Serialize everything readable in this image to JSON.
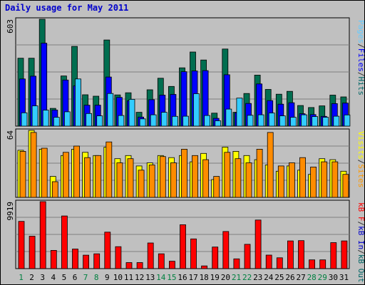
{
  "chart_data": {
    "title": "Daily usage for May 2011",
    "type": "bar",
    "categories": [
      "1",
      "2",
      "3",
      "4",
      "5",
      "6",
      "7",
      "8",
      "9",
      "10",
      "11",
      "12",
      "13",
      "14",
      "15",
      "16",
      "17",
      "18",
      "19",
      "20",
      "21",
      "22",
      "23",
      "24",
      "25",
      "26",
      "27",
      "28",
      "29",
      "30",
      "31"
    ],
    "weekend_days": [
      "1",
      "7",
      "8",
      "14",
      "15",
      "21",
      "22",
      "28",
      "29"
    ],
    "panels": [
      {
        "name": "hits-files-pages",
        "max_label": "603",
        "ymax": 603,
        "legend": [
          "Pages",
          "/",
          "Files",
          "/",
          "Hits"
        ],
        "legend_colors": [
          "#66ccff",
          "#333333",
          "#0000ff",
          "#333333",
          "#006666"
        ],
        "series": [
          {
            "name": "Hits",
            "color": "#006e50",
            "values": [
              383,
              383,
              603,
              100,
              283,
              450,
              177,
              169,
              486,
              176,
              188,
              78,
              205,
              270,
              224,
              329,
              418,
              373,
              73,
              435,
              78,
              184,
              288,
              207,
              180,
              196,
              116,
              105,
              114,
              175,
              165
            ]
          },
          {
            "name": "Files",
            "color": "#0000ff",
            "values": [
              266,
              282,
              468,
              91,
              260,
              227,
              118,
              118,
              277,
              162,
              143,
              51,
              149,
              175,
              179,
              307,
              311,
              313,
              44,
              290,
              75,
              128,
              238,
              144,
              124,
              132,
              70,
              65,
              55,
              127,
              130
            ]
          },
          {
            "name": "Pages",
            "color": "#33ccff",
            "values": [
              75,
              114,
              90,
              50,
              81,
              266,
              71,
              58,
              184,
              60,
              151,
              41,
              64,
              78,
              55,
              56,
              183,
              60,
              30,
              96,
              158,
              61,
              64,
              74,
              58,
              50,
              64,
              54,
              50,
              56,
              63
            ]
          }
        ]
      },
      {
        "name": "visits-sites",
        "max_label": "64",
        "ymax": 64,
        "legend": [
          "Visits",
          "/",
          "Sites"
        ],
        "legend_colors": [
          "#ffff00",
          "#333333",
          "#ff9900"
        ],
        "series": [
          {
            "name": "Visits",
            "color": "#ffff00",
            "values": [
              45,
              64,
              46,
              20,
              40,
              46,
              43,
              40,
              48,
              37,
              40,
              30,
              33,
              40,
              38,
              40,
              34,
              42,
              17,
              48,
              44,
              40,
              36,
              31,
              25,
              30,
              26,
              22,
              37,
              36,
              25
            ]
          },
          {
            "name": "Sites",
            "color": "#ff8c00",
            "values": [
              44,
              62,
              47,
              15,
              43,
              49,
              38,
              40,
              53,
              33,
              37,
              26,
              31,
              39,
              33,
              46,
              40,
              36,
              20,
              43,
              37,
              33,
              46,
              62,
              30,
              33,
              38,
              29,
              34,
              34,
              22
            ]
          }
        ]
      },
      {
        "name": "kb-f-in-out",
        "max_label": "9919",
        "ymax": 9919,
        "legend": [
          "kB F",
          "/",
          "kB In",
          "/",
          "kB Out"
        ],
        "legend_colors": [
          "#ff0000",
          "#333333",
          "#0000cc",
          "#333333",
          "#006666"
        ],
        "series": [
          {
            "name": "kB F",
            "color": "#ff0000",
            "values": [
              7000,
              4800,
              9919,
              2700,
              7800,
              2900,
              1990,
              2200,
              5400,
              3250,
              900,
              900,
              3800,
              2200,
              1100,
              6500,
              4400,
              400,
              3200,
              5500,
              1450,
              3600,
              7200,
              2000,
              1600,
              4100,
              4150,
              1300,
              1300,
              3850,
              4100
            ]
          }
        ]
      }
    ]
  }
}
